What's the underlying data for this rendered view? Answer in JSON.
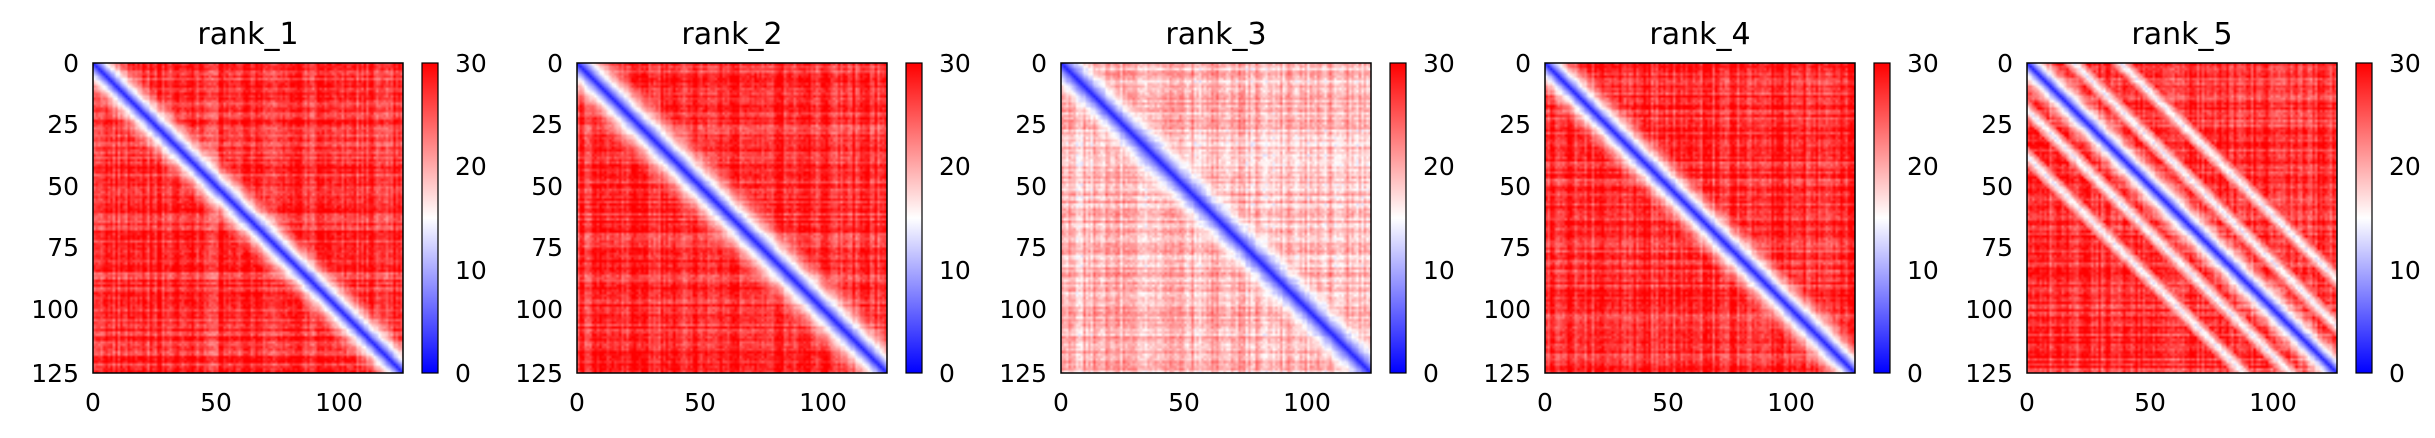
{
  "chart_data": [
    {
      "type": "heatmap",
      "title": "rank_1",
      "size": 126,
      "x_ticks": [
        "0",
        "50",
        "100"
      ],
      "y_ticks": [
        "0",
        "25",
        "50",
        "75",
        "100",
        "125"
      ],
      "colorbar": {
        "min": 0,
        "max": 30,
        "ticks": [
          "0",
          "10",
          "20",
          "30"
        ],
        "colormap": "bwr"
      },
      "pattern": {
        "band_width": 7,
        "steps": []
      }
    },
    {
      "type": "heatmap",
      "title": "rank_2",
      "size": 126,
      "x_ticks": [
        "0",
        "50",
        "100"
      ],
      "y_ticks": [
        "0",
        "25",
        "50",
        "75",
        "100",
        "125"
      ],
      "colorbar": {
        "min": 0,
        "max": 30,
        "ticks": [
          "0",
          "10",
          "20",
          "30"
        ],
        "colormap": "bwr"
      },
      "pattern": {
        "band_width": 9,
        "steps": []
      }
    },
    {
      "type": "heatmap",
      "title": "rank_3",
      "size": 126,
      "x_ticks": [
        "0",
        "50",
        "100"
      ],
      "y_ticks": [
        "0",
        "25",
        "50",
        "75",
        "100",
        "125"
      ],
      "colorbar": {
        "min": 0,
        "max": 30,
        "ticks": [
          "0",
          "10",
          "20",
          "30"
        ],
        "colormap": "bwr"
      },
      "pattern": {
        "band_width": 8,
        "steps": [],
        "mean_level": 19
      }
    },
    {
      "type": "heatmap",
      "title": "rank_4",
      "size": 126,
      "x_ticks": [
        "0",
        "50",
        "100"
      ],
      "y_ticks": [
        "0",
        "25",
        "50",
        "75",
        "100",
        "125"
      ],
      "colorbar": {
        "min": 0,
        "max": 30,
        "ticks": [
          "0",
          "10",
          "20",
          "30"
        ],
        "colormap": "bwr"
      },
      "pattern": {
        "band_width": 7,
        "steps": []
      }
    },
    {
      "type": "heatmap",
      "title": "rank_5",
      "size": 126,
      "x_ticks": [
        "0",
        "50",
        "100"
      ],
      "y_ticks": [
        "0",
        "25",
        "50",
        "75",
        "100",
        "125"
      ],
      "colorbar": {
        "min": 0,
        "max": 30,
        "ticks": [
          "0",
          "10",
          "20",
          "30"
        ],
        "colormap": "bwr"
      },
      "pattern": {
        "band_width": 6,
        "steps": [],
        "parallel_diagonals": [
          -38,
          -19,
          19,
          38
        ]
      }
    }
  ]
}
